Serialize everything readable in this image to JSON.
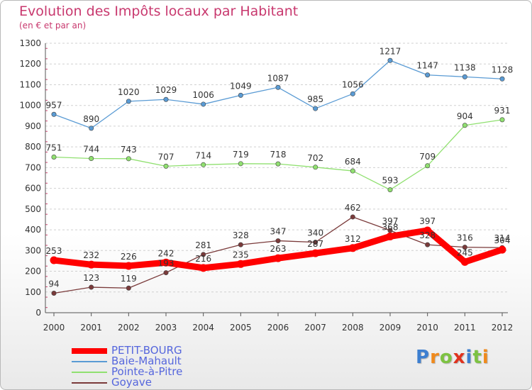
{
  "header": {
    "title": "Evolution des Impôts locaux par Habitant",
    "subtitle": "(en € et par an)"
  },
  "logo": {
    "text": "Proxiti",
    "colors": [
      "#3d7fd0",
      "#f08a1c",
      "#7dc242",
      "#e0321e",
      "#3d7fd0",
      "#7dc242",
      "#f08a1c"
    ]
  },
  "chart_data": {
    "type": "line",
    "title": "Evolution des Impôts locaux par Habitant",
    "subtitle": "(en € et par an)",
    "xlabel": "",
    "ylabel": "",
    "ylim": [
      0,
      1300
    ],
    "yticks": [
      0,
      100,
      200,
      300,
      400,
      500,
      600,
      700,
      800,
      900,
      1000,
      1100,
      1200,
      1300
    ],
    "x": [
      "2000",
      "2001",
      "2002",
      "2003",
      "2004",
      "2005",
      "2006",
      "2007",
      "2008",
      "2009",
      "2010",
      "2011",
      "2012"
    ],
    "grid": "y-dashed",
    "legend": "bottom-left",
    "series": [
      {
        "name": "PETIT-BOURG",
        "color": "#ff0000",
        "width": 9,
        "values": [
          253,
          232,
          226,
          242,
          216,
          235,
          263,
          287,
          312,
          368,
          397,
          245,
          304
        ]
      },
      {
        "name": "Baie-Mahault",
        "color": "#5a9bd4",
        "width": 1.3,
        "values": [
          957,
          890,
          1020,
          1029,
          1006,
          1049,
          1087,
          985,
          1056,
          1217,
          1147,
          1138,
          1128
        ]
      },
      {
        "name": "Pointe-à-Pitre",
        "color": "#90e070",
        "width": 1.3,
        "values": [
          751,
          744,
          743,
          707,
          714,
          719,
          718,
          702,
          684,
          593,
          709,
          904,
          931
        ]
      },
      {
        "name": "Goyave",
        "color": "#7a3a3a",
        "width": 1.3,
        "values": [
          94,
          123,
          119,
          193,
          281,
          328,
          347,
          340,
          462,
          397,
          328,
          316,
          314
        ]
      }
    ]
  }
}
